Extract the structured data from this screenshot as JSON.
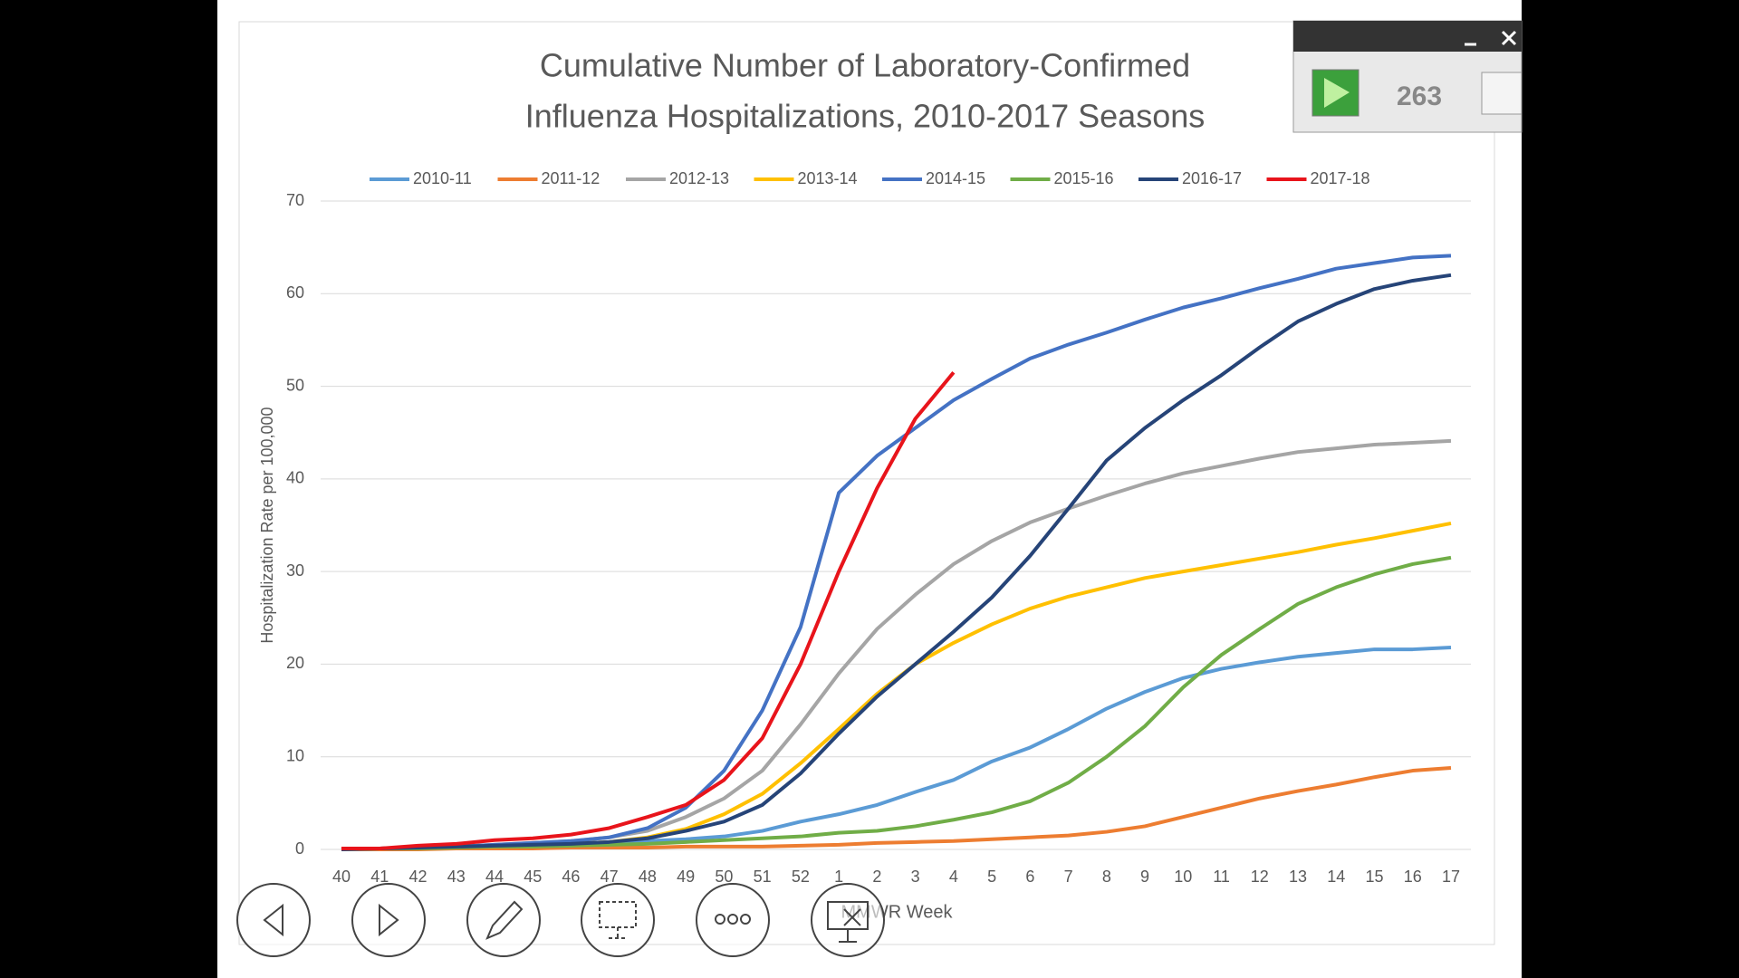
{
  "chart_data": {
    "type": "line",
    "title": "Cumulative Number of Laboratory-Confirmed",
    "subtitle": "Influenza Hospitalizations, 2010-2017 Seasons",
    "y_label": "Hospitalization Rate per 100,000",
    "x_label": "MMWR Week",
    "legend": "top",
    "grid": true,
    "categories": [
      "40",
      "41",
      "42",
      "43",
      "44",
      "45",
      "46",
      "47",
      "48",
      "49",
      "50",
      "51",
      "52",
      "1",
      "2",
      "3",
      "4",
      "5",
      "6",
      "7",
      "8",
      "9",
      "10",
      "11",
      "12",
      "13",
      "14",
      "15",
      "16",
      "17"
    ],
    "ylim": [
      0,
      70
    ],
    "yticks": [
      0,
      10,
      20,
      30,
      40,
      50,
      60,
      70
    ],
    "series": [
      {
        "name": "2010-11",
        "color": "#5b9bd5",
        "values": [
          0,
          0.1,
          0.2,
          0.3,
          0.4,
          0.5,
          0.6,
          0.7,
          0.9,
          1.1,
          1.4,
          2,
          3,
          3.8,
          4.8,
          6.2,
          7.5,
          9.5,
          11,
          13,
          15.2,
          17,
          18.5,
          19.5,
          20.2,
          20.8,
          21.2,
          21.6,
          21.6,
          21.8
        ]
      },
      {
        "name": "2011-12",
        "color": "#ed7d31",
        "values": [
          0,
          0,
          0,
          0.1,
          0.1,
          0.1,
          0.2,
          0.2,
          0.2,
          0.3,
          0.3,
          0.3,
          0.4,
          0.5,
          0.7,
          0.8,
          0.9,
          1.1,
          1.3,
          1.5,
          1.9,
          2.5,
          3.5,
          4.5,
          5.5,
          6.3,
          7,
          7.8,
          8.5,
          8.8
        ]
      },
      {
        "name": "2012-13",
        "color": "#a5a5a5",
        "values": [
          0,
          0.1,
          0.2,
          0.3,
          0.5,
          0.7,
          0.9,
          1.3,
          2,
          3.5,
          5.5,
          8.5,
          13.5,
          19,
          23.8,
          27.5,
          30.8,
          33.3,
          35.3,
          36.8,
          38.2,
          39.5,
          40.6,
          41.4,
          42.2,
          42.9,
          43.3,
          43.7,
          43.9,
          44.1
        ]
      },
      {
        "name": "2013-14",
        "color": "#ffc000",
        "values": [
          0,
          0.1,
          0.2,
          0.3,
          0.4,
          0.5,
          0.6,
          0.8,
          1.3,
          2.2,
          3.8,
          6,
          9.3,
          13,
          16.8,
          20,
          22.3,
          24.3,
          26,
          27.3,
          28.3,
          29.3,
          30,
          30.7,
          31.4,
          32.1,
          32.9,
          33.6,
          34.4,
          35.2
        ]
      },
      {
        "name": "2014-15",
        "color": "#4472c4",
        "values": [
          0,
          0.1,
          0.2,
          0.3,
          0.5,
          0.7,
          0.9,
          1.3,
          2.3,
          4.5,
          8.5,
          15,
          24,
          38.5,
          42.5,
          45.5,
          48.5,
          50.8,
          53,
          54.5,
          55.8,
          57.2,
          58.5,
          59.5,
          60.6,
          61.6,
          62.7,
          63.3,
          63.9,
          64.1
        ]
      },
      {
        "name": "2015-16",
        "color": "#70ad47",
        "values": [
          0,
          0.1,
          0.1,
          0.2,
          0.3,
          0.3,
          0.4,
          0.5,
          0.6,
          0.8,
          1,
          1.2,
          1.4,
          1.8,
          2,
          2.5,
          3.2,
          4,
          5.2,
          7.2,
          10,
          13.3,
          17.5,
          21,
          23.8,
          26.5,
          28.3,
          29.7,
          30.8,
          31.5
        ]
      },
      {
        "name": "2016-17",
        "color": "#264478",
        "values": [
          0,
          0.1,
          0.2,
          0.3,
          0.4,
          0.5,
          0.6,
          0.8,
          1.2,
          2,
          3,
          4.8,
          8.2,
          12.5,
          16.5,
          20,
          23.5,
          27.2,
          31.7,
          36.8,
          42,
          45.5,
          48.5,
          51.2,
          54.2,
          57,
          58.9,
          60.5,
          61.4,
          62
        ]
      },
      {
        "name": "2017-18",
        "color": "#e8141b",
        "values": [
          0.1,
          0.1,
          0.4,
          0.6,
          1,
          1.2,
          1.6,
          2.3,
          3.5,
          4.8,
          7.5,
          12,
          20,
          30,
          39,
          46.5,
          51.5,
          null,
          null,
          null,
          null,
          null,
          null,
          null,
          null,
          null,
          null,
          null,
          null,
          null
        ]
      }
    ]
  },
  "widget": {
    "counter": "263"
  }
}
